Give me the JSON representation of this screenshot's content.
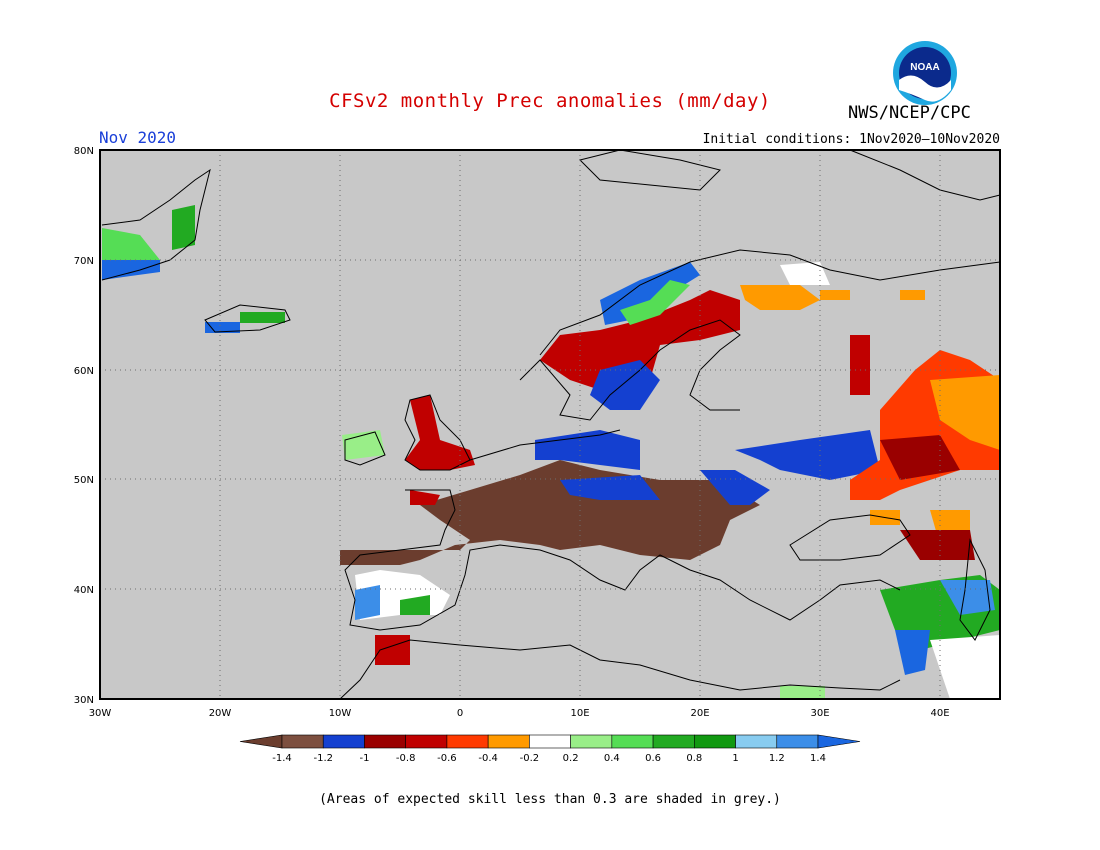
{
  "header": {
    "title": "CFSv2 monthly Prec anomalies (mm/day)",
    "month": "Nov 2020",
    "initial_conditions": "Initial conditions: 1Nov2020–10Nov2020",
    "agency": "NWS/NCEP/CPC",
    "logo_text": "NOAA"
  },
  "colors": {
    "title": "#d40000",
    "month": "#1a3fd8",
    "land_grey": "#c8c8c8",
    "coast": "#000000",
    "gridline": "#6e6e6e"
  },
  "map": {
    "lon_range": [
      -30,
      45
    ],
    "lat_range": [
      30,
      80
    ],
    "lat_ticks": [
      "30N",
      "40N",
      "50N",
      "60N",
      "70N",
      "80N"
    ],
    "lon_ticks": [
      "30W",
      "20W",
      "10W",
      "0",
      "10E",
      "20E",
      "30E",
      "40E"
    ],
    "gridlines": true
  },
  "colorbar": {
    "labels": [
      "-1.4",
      "-1.2",
      "-1",
      "-0.8",
      "-0.6",
      "-0.4",
      "-0.2",
      "0.2",
      "0.4",
      "0.6",
      "0.8",
      "1",
      "1.2",
      "1.4"
    ],
    "bins": [
      {
        "color": "#6b3d2e"
      },
      {
        "color": "#7d4f3f"
      },
      {
        "color": "#1440d0"
      },
      {
        "color": "#9a0000"
      },
      {
        "color": "#c00000"
      },
      {
        "color": "#ff3a00"
      },
      {
        "color": "#ff9a00"
      },
      {
        "color": "#ffffff"
      },
      {
        "color": "#99ee88"
      },
      {
        "color": "#55dd55"
      },
      {
        "color": "#22aa22"
      },
      {
        "color": "#119911"
      },
      {
        "color": "#88ccf0"
      },
      {
        "color": "#3c8ee8"
      },
      {
        "color": "#1a66e0"
      }
    ]
  },
  "footnote": "(Areas of expected skill less than 0.3 are shaded in grey.)"
}
